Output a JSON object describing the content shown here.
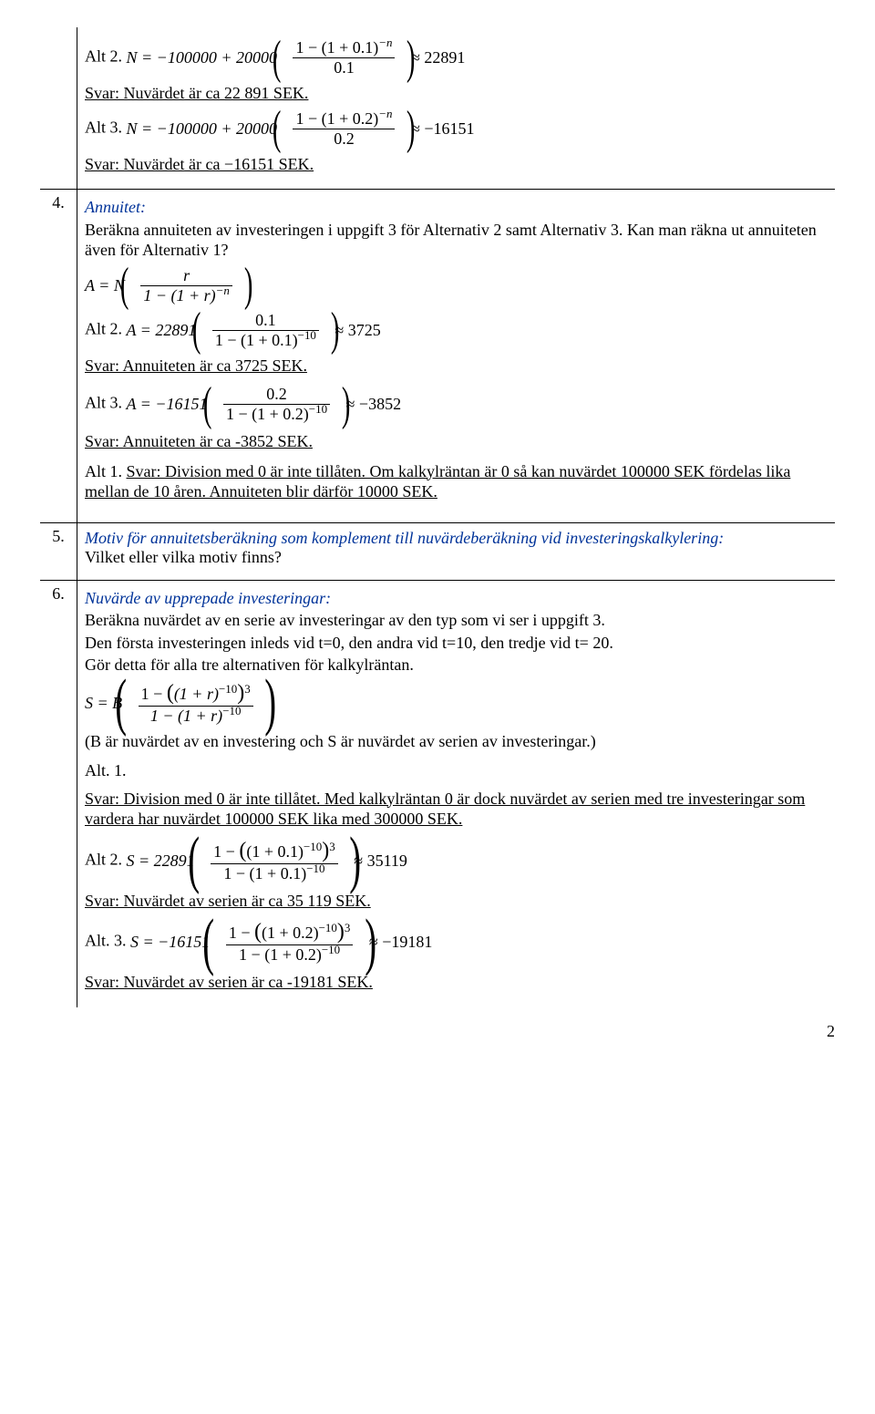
{
  "row1": {
    "alt2_label": "Alt 2.",
    "alt2_formula_lhs": "N = −100000 + 20000",
    "alt2_frac_num": "1 − (1 + 0.1)",
    "alt2_frac_num_sup": "−n",
    "alt2_frac_den": "0.1",
    "alt2_result": "≈ 22891",
    "alt2_svar": "Svar: Nuvärdet är ca 22 891 SEK.",
    "alt3_label": "Alt 3.",
    "alt3_formula_lhs": "N = −100000 + 20000",
    "alt3_frac_num": "1 − (1 + 0.2)",
    "alt3_frac_num_sup": "−n",
    "alt3_frac_den": "0.2",
    "alt3_result": "≈ −16151",
    "alt3_svar": "Svar: Nuvärdet är ca −16151 SEK."
  },
  "row4": {
    "num": "4.",
    "title": "Annuitet:",
    "desc1": "Beräkna annuiteten av investeringen i uppgift 3 för Alternativ 2 samt Alternativ 3. Kan man räkna ut annuiteten även för Alternativ 1?",
    "gen_lhs": "A = N",
    "gen_frac_num": "r",
    "gen_frac_den": "1 − (1 + r)",
    "gen_frac_den_sup": "−n",
    "alt2_label": "Alt 2.",
    "alt2_lhs": "A = 22891",
    "alt2_frac_num": "0.1",
    "alt2_frac_den": "1 − (1 + 0.1)",
    "alt2_frac_den_sup": "−10",
    "alt2_result": "≈ 3725",
    "alt2_svar": "Svar: Annuiteten är ca 3725 SEK.",
    "alt3_label": "Alt 3.",
    "alt3_lhs": "A = −16151",
    "alt3_frac_num": "0.2",
    "alt3_frac_den": "1 − (1 + 0.2)",
    "alt3_frac_den_sup": "−10",
    "alt3_result": "≈ −3852",
    "alt3_svar": "Svar: Annuiteten är ca -3852 SEK.",
    "alt1_text_a": "Alt 1. ",
    "alt1_text_b": "Svar: Division med 0 är inte tillåten. Om kalkylräntan är 0 så kan nuvärdet 100000 SEK  fördelas lika mellan de 10 åren. Annuiteten blir därför 10000 SEK."
  },
  "row5": {
    "num": "5.",
    "title": "Motiv för annuitetsberäkning som komplement till nuvärdeberäkning vid investeringskalkylering:",
    "desc": "Vilket eller vilka motiv finns?"
  },
  "row6": {
    "num": "6.",
    "title": "Nuvärde av upprepade investeringar:",
    "desc1": "Beräkna nuvärdet av en serie av investeringar av den typ som vi ser i uppgift 3.",
    "desc2": "Den första investeringen inleds vid t=0, den andra vid t=10, den tredje vid t= 20.",
    "desc3": "Gör detta för alla tre alternativen för kalkylräntan.",
    "gen_lhs": "S = B",
    "gen_num_a": "1 − ",
    "gen_num_b": "(1 + r)",
    "gen_num_b_sup": "−10",
    "gen_num_outer_sup": "3",
    "gen_den": "1 − (1 + r)",
    "gen_den_sup": "−10",
    "note": "(B är nuvärdet av en investering och S är nuvärdet av serien av investeringar.)",
    "alt1_label": "Alt. 1.",
    "alt1_svar": "Svar: Division med 0 är inte tillåtet. Med kalkylräntan 0 är dock nuvärdet av serien med tre investeringar som vardera har nuvärdet 100000 SEK lika med 300000 SEK.",
    "alt2_label": "Alt 2.",
    "alt2_lhs": "S = 22891",
    "alt2_num_a": "1 − ",
    "alt2_num_b": "(1 + 0.1)",
    "alt2_num_b_sup": "−10",
    "alt2_num_outer_sup": "3",
    "alt2_den": "1 − (1 + 0.1)",
    "alt2_den_sup": "−10",
    "alt2_result": "≈ 35119",
    "alt2_svar": "Svar: Nuvärdet av serien är ca 35 119 SEK.",
    "alt3_label": "Alt. 3.",
    "alt3_lhs": "S = −16151",
    "alt3_num_a": "1 − ",
    "alt3_num_b": "(1 + 0.2)",
    "alt3_num_b_sup": "−10",
    "alt3_num_outer_sup": "3",
    "alt3_den": "1 − (1 + 0.2)",
    "alt3_den_sup": "−10",
    "alt3_result": "≈ −19181",
    "alt3_svar": "Svar: Nuvärdet av serien är ca -19181 SEK."
  },
  "pagenum": "2"
}
